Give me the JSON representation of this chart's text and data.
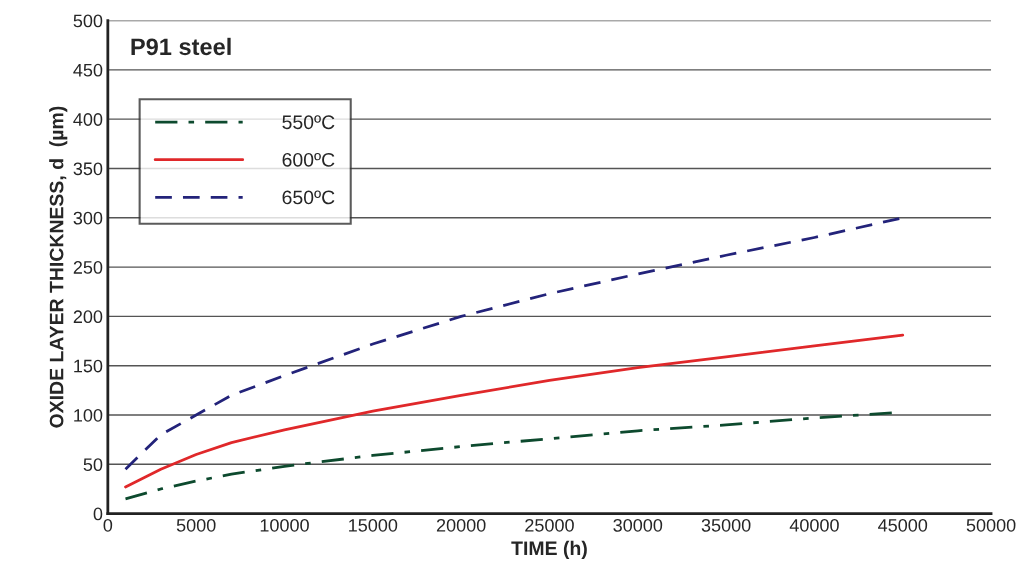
{
  "chart_data": {
    "type": "line",
    "title": "P91 steel",
    "xlabel": "TIME (h)",
    "ylabel": "OXIDE LAYER THICKNESS, d  (µm)",
    "x": [
      1000,
      3000,
      5000,
      7000,
      10000,
      15000,
      20000,
      25000,
      30000,
      35000,
      40000,
      45000
    ],
    "series": [
      {
        "name": "550ºC",
        "color": "#0d4a2e",
        "line_style": "dashdot",
        "values": [
          15,
          25,
          33,
          40,
          48,
          59,
          68,
          76,
          84,
          90,
          97,
          103
        ]
      },
      {
        "name": "600ºC",
        "color": "#e0282a",
        "line_style": "solid",
        "values": [
          27,
          45,
          60,
          72,
          85,
          104,
          120,
          135,
          148,
          159,
          170,
          181
        ]
      },
      {
        "name": "650ºC",
        "color": "#23237a",
        "line_style": "dashed",
        "values": [
          45,
          80,
          100,
          120,
          140,
          172,
          200,
          223,
          243,
          262,
          280,
          300
        ]
      }
    ],
    "xlim": [
      0,
      50000
    ],
    "xticks": [
      0,
      5000,
      10000,
      15000,
      20000,
      25000,
      30000,
      35000,
      40000,
      45000,
      50000
    ],
    "ylim": [
      0,
      500
    ],
    "yticks": [
      0,
      50,
      100,
      150,
      200,
      250,
      300,
      350,
      400,
      450,
      500
    ],
    "grid": "y",
    "legend": "top left",
    "marker": "none"
  }
}
